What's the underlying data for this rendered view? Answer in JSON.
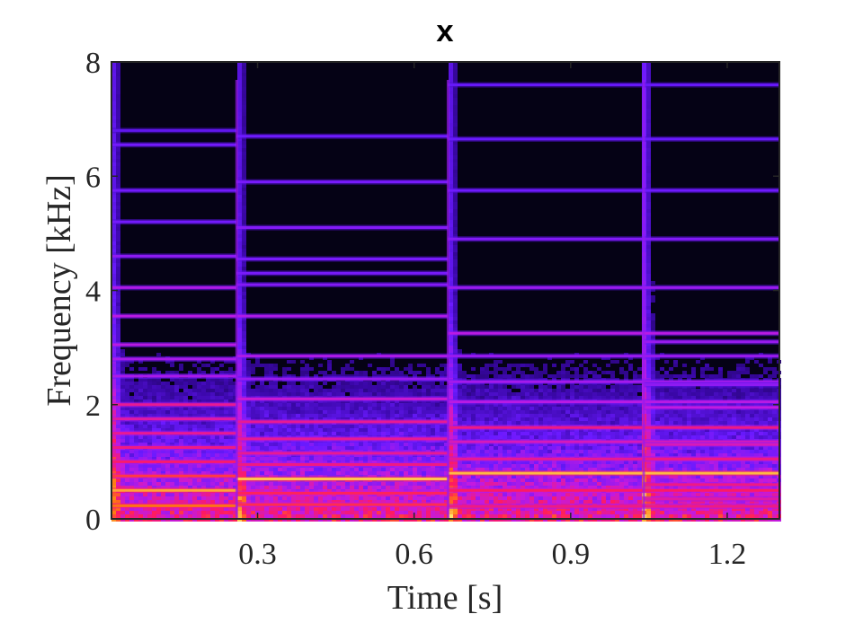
{
  "chart_data": {
    "type": "heatmap",
    "title": "x",
    "xlabel": "Time [s]",
    "ylabel": "Frequency [kHz]",
    "xlim": [
      0.02,
      1.3
    ],
    "ylim": [
      0,
      8
    ],
    "xticks": [
      0.3,
      0.6,
      0.9,
      1.2
    ],
    "xtick_labels": [
      "0.3",
      "0.6",
      "0.9",
      "1.2"
    ],
    "yticks": [
      0,
      2,
      4,
      6,
      8
    ],
    "ytick_labels": [
      "0",
      "2",
      "4",
      "6",
      "8"
    ],
    "colormap": [
      "#050215",
      "#3a07a8",
      "#6a1aff",
      "#c41adf",
      "#ff1a60",
      "#ff7a10",
      "#ffe36a"
    ],
    "background_color": "#050215",
    "onsets_s": [
      0.02,
      0.26,
      0.665,
      1.04
    ],
    "segments": [
      {
        "start_s": 0.02,
        "end_s": 0.26,
        "partials": [
          {
            "khz": 0.23,
            "level": 0.82
          },
          {
            "khz": 0.5,
            "level": 0.9
          },
          {
            "khz": 0.75,
            "level": 0.72
          },
          {
            "khz": 1.0,
            "level": 0.65
          },
          {
            "khz": 1.25,
            "level": 0.62
          },
          {
            "khz": 1.5,
            "level": 0.6
          },
          {
            "khz": 1.75,
            "level": 0.58
          },
          {
            "khz": 2.0,
            "level": 0.6
          },
          {
            "khz": 2.5,
            "level": 0.45
          },
          {
            "khz": 2.8,
            "level": 0.45
          },
          {
            "khz": 3.05,
            "level": 0.48
          },
          {
            "khz": 3.55,
            "level": 0.48
          },
          {
            "khz": 4.05,
            "level": 0.46
          },
          {
            "khz": 4.6,
            "level": 0.4
          },
          {
            "khz": 5.2,
            "level": 0.35
          },
          {
            "khz": 5.75,
            "level": 0.35
          },
          {
            "khz": 6.55,
            "level": 0.35
          },
          {
            "khz": 6.8,
            "level": 0.3
          }
        ]
      },
      {
        "start_s": 0.26,
        "end_s": 0.665,
        "partials": [
          {
            "khz": 0.25,
            "level": 0.7
          },
          {
            "khz": 0.45,
            "level": 0.68
          },
          {
            "khz": 0.7,
            "level": 0.95
          },
          {
            "khz": 0.95,
            "level": 0.62
          },
          {
            "khz": 1.15,
            "level": 0.6
          },
          {
            "khz": 1.4,
            "level": 0.6
          },
          {
            "khz": 1.7,
            "level": 0.6
          },
          {
            "khz": 2.1,
            "level": 0.52
          },
          {
            "khz": 2.45,
            "level": 0.42
          },
          {
            "khz": 2.85,
            "level": 0.46
          },
          {
            "khz": 3.55,
            "level": 0.46
          },
          {
            "khz": 4.1,
            "level": 0.38
          },
          {
            "khz": 4.3,
            "level": 0.36
          },
          {
            "khz": 4.55,
            "level": 0.36
          },
          {
            "khz": 5.1,
            "level": 0.38
          },
          {
            "khz": 5.9,
            "level": 0.36
          },
          {
            "khz": 6.7,
            "level": 0.34
          }
        ]
      },
      {
        "start_s": 0.665,
        "end_s": 1.3,
        "partials": [
          {
            "khz": 0.22,
            "level": 0.62
          },
          {
            "khz": 0.5,
            "level": 0.66
          },
          {
            "khz": 0.8,
            "level": 0.93
          },
          {
            "khz": 1.05,
            "level": 0.6
          },
          {
            "khz": 1.35,
            "level": 0.55
          },
          {
            "khz": 1.6,
            "level": 0.62
          },
          {
            "khz": 2.05,
            "level": 0.48
          },
          {
            "khz": 2.4,
            "level": 0.44
          },
          {
            "khz": 2.85,
            "level": 0.42
          },
          {
            "khz": 3.25,
            "level": 0.48
          },
          {
            "khz": 4.05,
            "level": 0.42
          },
          {
            "khz": 4.9,
            "level": 0.38
          },
          {
            "khz": 5.75,
            "level": 0.34
          },
          {
            "khz": 6.65,
            "level": 0.33
          },
          {
            "khz": 7.6,
            "level": 0.32
          }
        ]
      },
      {
        "start_s": 1.04,
        "end_s": 1.3,
        "partials": [
          {
            "khz": 0.35,
            "level": 0.58
          },
          {
            "khz": 0.6,
            "level": 0.62
          },
          {
            "khz": 1.05,
            "level": 0.62
          },
          {
            "khz": 1.3,
            "level": 0.55
          },
          {
            "khz": 1.95,
            "level": 0.5
          },
          {
            "khz": 2.35,
            "level": 0.4
          },
          {
            "khz": 3.1,
            "level": 0.42
          }
        ]
      }
    ]
  }
}
